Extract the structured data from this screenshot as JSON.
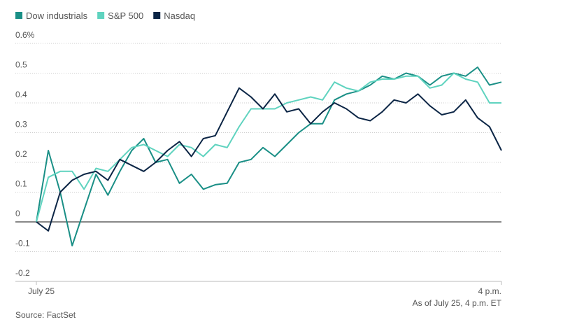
{
  "chart_data": {
    "type": "line",
    "x": [
      0,
      10,
      20,
      30,
      40,
      50,
      60,
      70,
      80,
      90,
      100,
      110,
      120,
      130,
      140,
      150,
      160,
      170,
      180,
      190,
      200,
      210,
      220,
      230,
      240,
      250,
      260,
      270,
      280,
      290,
      300,
      310,
      320,
      330,
      340,
      350,
      360,
      370,
      380,
      390
    ],
    "xlim": [
      0,
      390
    ],
    "xticks": [
      {
        "value": 0,
        "label": "July 25"
      },
      {
        "value": 390,
        "label": "4 p.m."
      }
    ],
    "ylim": [
      -0.2,
      0.6
    ],
    "yticks": [
      -0.2,
      -0.1,
      0,
      0.1,
      0.2,
      0.3,
      0.4,
      0.5,
      {
        "value": 0.6,
        "label": "0.6%"
      }
    ],
    "grid": true,
    "legend": "top-left",
    "series": [
      {
        "name": "Dow industrials",
        "color": "#1a8f86",
        "values": [
          0,
          0.24,
          0.1,
          -0.08,
          0.04,
          0.16,
          0.09,
          0.17,
          0.24,
          0.28,
          0.2,
          0.21,
          0.13,
          0.16,
          0.11,
          0.125,
          0.13,
          0.2,
          0.21,
          0.25,
          0.22,
          0.26,
          0.3,
          0.33,
          0.33,
          0.41,
          0.43,
          0.44,
          0.46,
          0.49,
          0.48,
          0.5,
          0.49,
          0.46,
          0.49,
          0.5,
          0.49,
          0.52,
          0.46,
          0.47
        ]
      },
      {
        "name": "S&P 500",
        "color": "#5fd3bf",
        "values": [
          0,
          0.15,
          0.17,
          0.17,
          0.11,
          0.18,
          0.17,
          0.21,
          0.25,
          0.26,
          0.24,
          0.22,
          0.26,
          0.25,
          0.22,
          0.26,
          0.25,
          0.32,
          0.38,
          0.38,
          0.38,
          0.4,
          0.41,
          0.42,
          0.41,
          0.47,
          0.45,
          0.44,
          0.47,
          0.48,
          0.48,
          0.49,
          0.49,
          0.45,
          0.46,
          0.5,
          0.48,
          0.47,
          0.4,
          0.4
        ]
      },
      {
        "name": "Nasdaq",
        "color": "#0b2545",
        "values": [
          0,
          -0.03,
          0.1,
          0.14,
          0.16,
          0.17,
          0.14,
          0.21,
          0.19,
          0.17,
          0.2,
          0.24,
          0.27,
          0.22,
          0.28,
          0.29,
          0.37,
          0.45,
          0.42,
          0.38,
          0.43,
          0.37,
          0.38,
          0.33,
          0.37,
          0.4,
          0.38,
          0.35,
          0.34,
          0.37,
          0.41,
          0.4,
          0.43,
          0.39,
          0.36,
          0.37,
          0.41,
          0.35,
          0.32,
          0.24
        ]
      }
    ],
    "note": "As of July 25, 4 p.m. ET",
    "source": "Source: FactSet"
  }
}
